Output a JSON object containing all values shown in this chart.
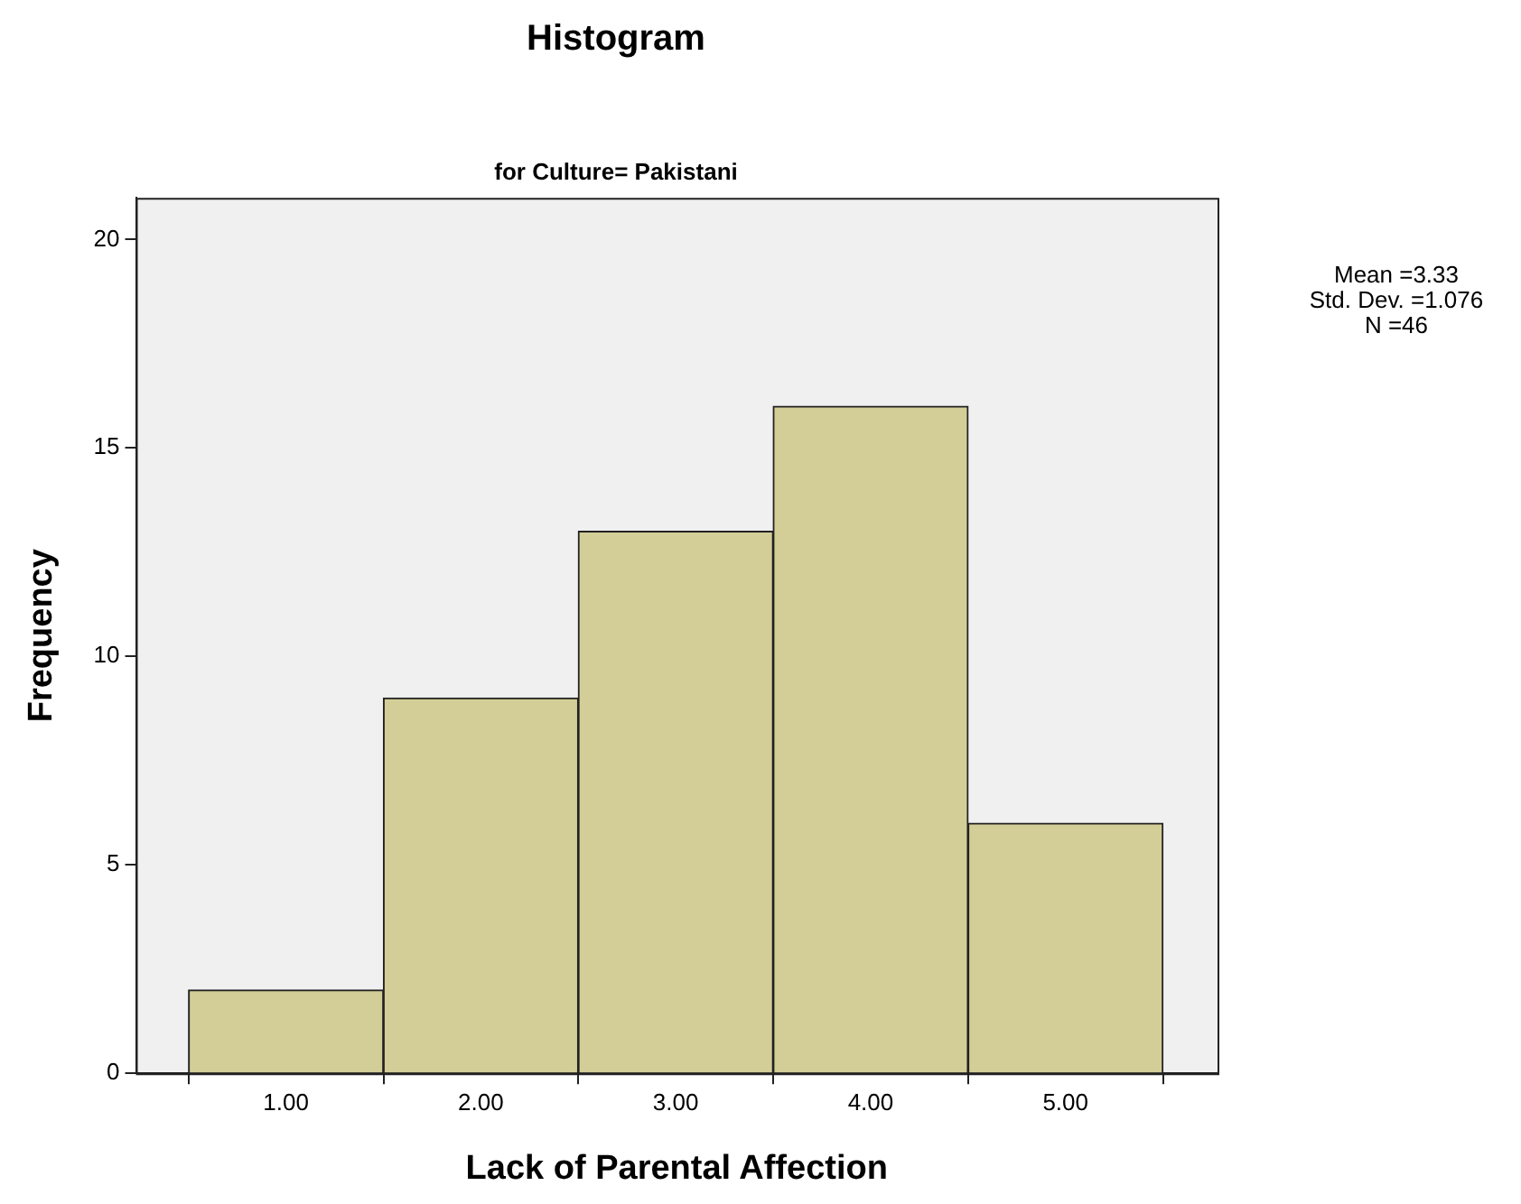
{
  "chart_data": {
    "type": "histogram",
    "title": "Histogram",
    "subtitle": "for Culture= Pakistani",
    "xlabel": "Lack of Parental Affection",
    "ylabel": "Frequency",
    "bins": [
      0.5,
      1.5,
      2.5,
      3.5,
      4.5,
      5.5
    ],
    "values": [
      2,
      9,
      13,
      16,
      6
    ],
    "color": "#d3ce97",
    "xlim": [
      0.23,
      5.78
    ],
    "xticks": [
      {
        "value": 1,
        "label": "1.00"
      },
      {
        "value": 2,
        "label": "2.00"
      },
      {
        "value": 3,
        "label": "3.00"
      },
      {
        "value": 4,
        "label": "4.00"
      },
      {
        "value": 5,
        "label": "5.00"
      }
    ],
    "ylim": [
      0,
      21
    ],
    "yticks": [
      0,
      5,
      10,
      15,
      20
    ],
    "grid": false,
    "legend": false,
    "annotations": [
      "Mean =3.33",
      "Std. Dev. =1.076",
      "N =46"
    ]
  }
}
